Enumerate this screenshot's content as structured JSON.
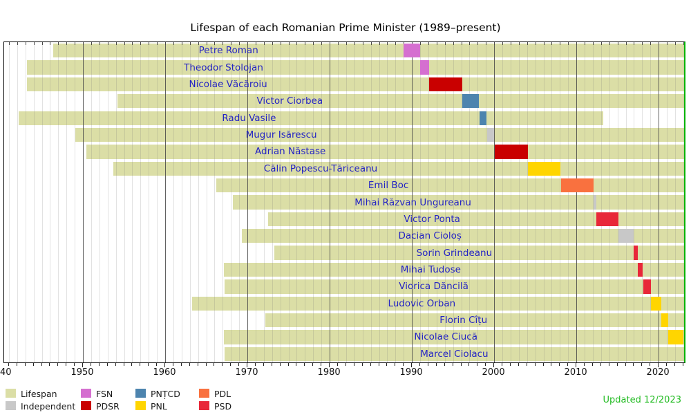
{
  "chart_data": {
    "type": "bar",
    "variant": "gantt-lifespan-timeline",
    "title": "Lifespan of each Romanian Prime Minister (1989–present)",
    "updated_note": "Updated 12/2023",
    "x_domain": [
      1940.42,
      2023.1
    ],
    "x_ticks": [
      {
        "year": 1940,
        "label": "40",
        "edge": true
      },
      {
        "year": 1950,
        "label": "1950"
      },
      {
        "year": 1960,
        "label": "1960"
      },
      {
        "year": 1970,
        "label": "1970"
      },
      {
        "year": 1980,
        "label": "1980"
      },
      {
        "year": 1990,
        "label": "1990"
      },
      {
        "year": 2000,
        "label": "2000"
      },
      {
        "year": 2010,
        "label": "2010"
      },
      {
        "year": 2020,
        "label": "2020"
      }
    ],
    "palette": {
      "Lifespan": "#DBDEA6",
      "Independent": "#C8C8C8",
      "FSN": "#D56FD0",
      "PDSR": "#C90000",
      "PNTCD": "#4D84AE",
      "PNL": "#FFD500",
      "PDL": "#F9713F",
      "PSD": "#E82739"
    },
    "legend": [
      {
        "label": "Lifespan",
        "key": "Lifespan",
        "col": 0,
        "row": 0
      },
      {
        "label": "Independent",
        "key": "Independent",
        "col": 0,
        "row": 1
      },
      {
        "label": "FSN",
        "key": "FSN",
        "col": 1,
        "row": 0
      },
      {
        "label": "PDSR",
        "key": "PDSR",
        "col": 1,
        "row": 1
      },
      {
        "label": "PNȚCD",
        "key": "PNTCD",
        "col": 2,
        "row": 0
      },
      {
        "label": "PNL",
        "key": "PNL",
        "col": 2,
        "row": 1
      },
      {
        "label": "PDL",
        "key": "PDL",
        "col": 3,
        "row": 0
      },
      {
        "label": "PSD",
        "key": "PSD",
        "col": 3,
        "row": 1
      }
    ],
    "ministers": [
      {
        "name": "Petre Roman",
        "party": "FSN",
        "lifespan_start": 1946.4,
        "lifespan_end": null,
        "term_start": 1989.0,
        "term_end": 1991.0
      },
      {
        "name": "Theodor Stolojan",
        "party": "FSN",
        "lifespan_start": 1943.2,
        "lifespan_end": null,
        "term_start": 1991.0,
        "term_end": 1992.1
      },
      {
        "name": "Nicolae Văcăroiu",
        "party": "PDSR",
        "lifespan_start": 1943.2,
        "lifespan_end": null,
        "term_start": 1992.1,
        "term_end": 1996.1
      },
      {
        "name": "Victor Ciorbea",
        "party": "PNTCD",
        "lifespan_start": 1954.2,
        "lifespan_end": null,
        "term_start": 1996.1,
        "term_end": 1998.15
      },
      {
        "name": "Radu Vasile",
        "party": "PNTCD",
        "lifespan_start": 1942.2,
        "lifespan_end": 2013.3,
        "term_start": 1998.2,
        "term_end": 1999.1
      },
      {
        "name": "Mugur Isărescu",
        "party": "Independent",
        "lifespan_start": 1949.1,
        "lifespan_end": null,
        "term_start": 1999.15,
        "term_end": 2000.0
      },
      {
        "name": "Adrian Năstase",
        "party": "PDSR",
        "lifespan_start": 1950.4,
        "lifespan_end": null,
        "term_start": 2000.05,
        "term_end": 2004.1
      },
      {
        "name": "Călin Popescu-Tăriceanu",
        "party": "PNL",
        "lifespan_start": 1953.7,
        "lifespan_end": null,
        "term_start": 2004.1,
        "term_end": 2008.05
      },
      {
        "name": "Emil Boc",
        "party": "PDL",
        "lifespan_start": 1966.2,
        "lifespan_end": null,
        "term_start": 2008.1,
        "term_end": 2012.05
      },
      {
        "name": "Mihai Răzvan Ungureanu",
        "party": "Independent",
        "lifespan_start": 1968.2,
        "lifespan_end": null,
        "term_start": 2012.05,
        "term_end": 2012.4
      },
      {
        "name": "Victor Ponta",
        "party": "PSD",
        "lifespan_start": 1972.5,
        "lifespan_end": null,
        "term_start": 2012.4,
        "term_end": 2015.1
      },
      {
        "name": "Dacian Cioloș",
        "party": "Independent",
        "lifespan_start": 1969.3,
        "lifespan_end": null,
        "term_start": 2015.1,
        "term_end": 2017.0
      },
      {
        "name": "Sorin Grindeanu",
        "party": "PSD",
        "lifespan_start": 1973.3,
        "lifespan_end": null,
        "term_start": 2017.0,
        "term_end": 2017.5
      },
      {
        "name": "Mihai Tudose",
        "party": "PSD",
        "lifespan_start": 1967.1,
        "lifespan_end": null,
        "term_start": 2017.5,
        "term_end": 2018.05
      },
      {
        "name": "Viorica Dăncilă",
        "party": "PSD",
        "lifespan_start": 1967.2,
        "lifespan_end": null,
        "term_start": 2018.1,
        "term_end": 2019.05
      },
      {
        "name": "Ludovic Orban",
        "party": "PNL",
        "lifespan_start": 1963.3,
        "lifespan_end": null,
        "term_start": 2019.1,
        "term_end": 2020.35
      },
      {
        "name": "Florin Cîțu",
        "party": "PNL",
        "lifespan_start": 1972.2,
        "lifespan_end": null,
        "term_start": 2020.35,
        "term_end": 2021.15
      },
      {
        "name": "Nicolae Ciucă",
        "party": "PNL",
        "lifespan_start": 1967.1,
        "lifespan_end": null,
        "term_start": 2021.15,
        "term_end": 2023.0
      },
      {
        "name": "Marcel Ciolacu",
        "party": "PSD",
        "lifespan_start": 1967.2,
        "lifespan_end": null,
        "term_start": null,
        "term_end": null
      }
    ]
  }
}
